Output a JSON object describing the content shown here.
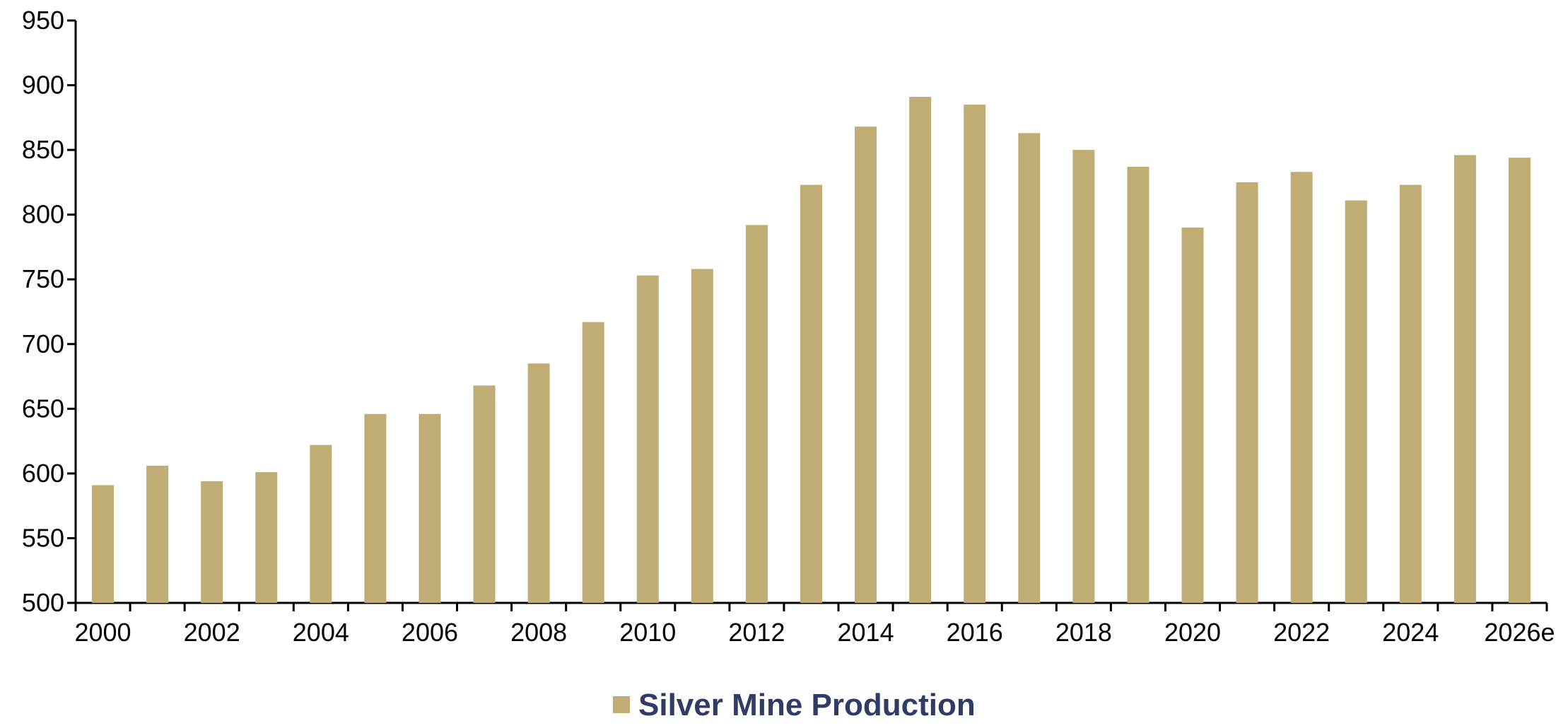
{
  "chart_data": {
    "type": "bar",
    "title": "",
    "xlabel": "",
    "ylabel": "",
    "categories": [
      "2000",
      "2001",
      "2002",
      "2003",
      "2004",
      "2005",
      "2006",
      "2007",
      "2008",
      "2009",
      "2010",
      "2011",
      "2012",
      "2013",
      "2014",
      "2015",
      "2016",
      "2017",
      "2018",
      "2019",
      "2020",
      "2021",
      "2022",
      "2023",
      "2024",
      "2025",
      "2026e"
    ],
    "x_tick_labels": [
      "2000",
      "2002",
      "2004",
      "2006",
      "2008",
      "2010",
      "2012",
      "2014",
      "2016",
      "2018",
      "2020",
      "2022",
      "2024",
      "2026e"
    ],
    "series": [
      {
        "name": "Silver Mine Production",
        "color": "#c0ad76",
        "values": [
          591,
          606,
          594,
          601,
          622,
          646,
          646,
          668,
          685,
          717,
          753,
          758,
          792,
          823,
          868,
          891,
          885,
          863,
          850,
          837,
          790,
          825,
          833,
          811,
          823,
          846,
          844
        ]
      }
    ],
    "ylim": [
      500,
      950
    ],
    "y_ticks": [
      500,
      550,
      600,
      650,
      700,
      750,
      800,
      850,
      900,
      950
    ],
    "grid": false,
    "legend_position": "bottom-center"
  }
}
